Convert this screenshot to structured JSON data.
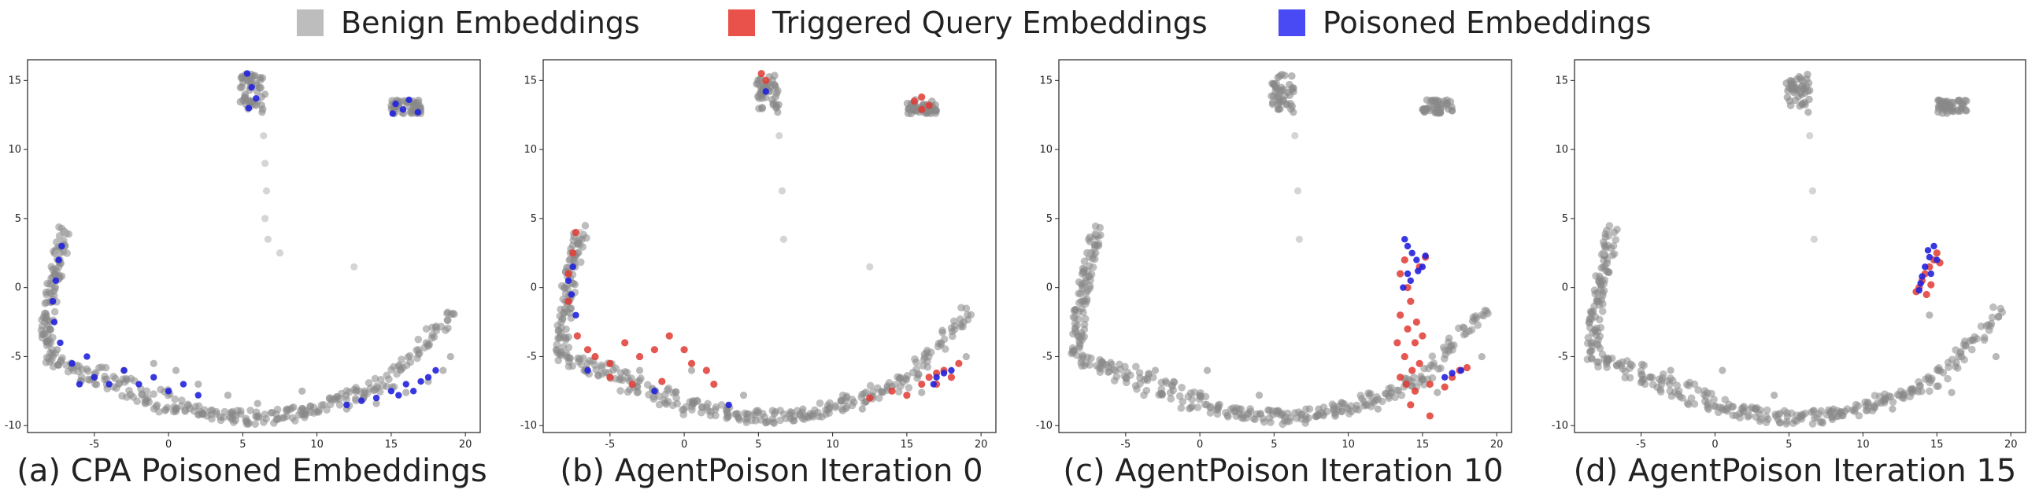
{
  "legend": [
    {
      "label": "Benign Embeddings",
      "color": "#bdbdbd"
    },
    {
      "label": "Triggered Query Embeddings",
      "color": "#e8524b"
    },
    {
      "label": "Poisoned Embeddings",
      "color": "#4a4af5"
    }
  ],
  "colors": {
    "benign": "#888888",
    "benign_light": "#b9b9b9",
    "triggered": "#e03a33",
    "poisoned": "#2222dd"
  },
  "captions": [
    "(a) CPA Poisoned Embeddings",
    "(b) AgentPoison Iteration 0",
    "(c) AgentPoison Iteration 10",
    "(d) AgentPoison Iteration 15"
  ],
  "chart_data": [
    {
      "type": "scatter",
      "title": "(a) CPA Poisoned Embeddings",
      "xlim": [
        -9.5,
        21
      ],
      "ylim": [
        -10.5,
        16.5
      ],
      "xticks": [
        -5,
        0,
        5,
        10,
        15,
        20
      ],
      "yticks": [
        -10,
        -5,
        0,
        5,
        10,
        15
      ],
      "series": [
        {
          "name": "Benign Embeddings",
          "points": [
            [
              -8,
              -1
            ],
            [
              -7.7,
              1
            ],
            [
              -7.5,
              2.5
            ],
            [
              -7.3,
              3.5
            ],
            [
              -7,
              4
            ],
            [
              -8,
              -3
            ],
            [
              -7.5,
              -4.5
            ],
            [
              -6.5,
              -5.5
            ],
            [
              -5,
              -6.5
            ],
            [
              -3,
              -6
            ],
            [
              -1,
              -5.5
            ],
            [
              0.5,
              -6
            ],
            [
              2,
              -7
            ],
            [
              4,
              -7.8
            ],
            [
              6,
              -8.4
            ],
            [
              8,
              -8.8
            ],
            [
              10,
              -9
            ],
            [
              12,
              -8.8
            ],
            [
              14,
              -8.4
            ],
            [
              16,
              -7.6
            ],
            [
              17.5,
              -6.8
            ],
            [
              18.5,
              -6
            ],
            [
              19,
              -5
            ],
            [
              5.5,
              14.5
            ],
            [
              6,
              13.5
            ],
            [
              6.5,
              14
            ],
            [
              5.3,
              15
            ],
            [
              6.3,
              12.7
            ],
            [
              15.5,
              13
            ],
            [
              16.5,
              13.2
            ],
            [
              17,
              12.8
            ],
            [
              6.4,
              11
            ],
            [
              6.5,
              9
            ],
            [
              6.6,
              7
            ],
            [
              6.5,
              5
            ],
            [
              6.7,
              3.5
            ],
            [
              7.5,
              2.5
            ],
            [
              12.5,
              1.5
            ],
            [
              9,
              -7.5
            ]
          ]
        },
        {
          "name": "Poisoned Embeddings",
          "points": [
            [
              -7.8,
              -1
            ],
            [
              -7.6,
              0.5
            ],
            [
              -7.4,
              2
            ],
            [
              -7.2,
              3
            ],
            [
              -7.7,
              -2.5
            ],
            [
              -7.3,
              -4
            ],
            [
              -6.5,
              -5.5
            ],
            [
              -5,
              -6.5
            ],
            [
              -4,
              -7
            ],
            [
              -3,
              -6
            ],
            [
              -2,
              -7
            ],
            [
              -1,
              -6.5
            ],
            [
              0,
              -7.5
            ],
            [
              1,
              -7
            ],
            [
              2,
              -7.8
            ],
            [
              -6,
              -7
            ],
            [
              -5.5,
              -5
            ],
            [
              12,
              -8.5
            ],
            [
              13,
              -8.2
            ],
            [
              14,
              -8
            ],
            [
              15,
              -7.5
            ],
            [
              15.5,
              -7.8
            ],
            [
              16,
              -7
            ],
            [
              16.5,
              -7.5
            ],
            [
              17,
              -6.8
            ],
            [
              17.5,
              -6.5
            ],
            [
              18,
              -6
            ],
            [
              5.3,
              15.5
            ],
            [
              5.6,
              14.5
            ],
            [
              5.9,
              13.7
            ],
            [
              5.4,
              13
            ],
            [
              15.3,
              13.3
            ],
            [
              15.8,
              12.9
            ],
            [
              16.2,
              13.6
            ],
            [
              16.8,
              12.7
            ],
            [
              15.1,
              12.6
            ]
          ]
        }
      ]
    },
    {
      "type": "scatter",
      "title": "(b) AgentPoison Iteration 0",
      "xlim": [
        -9.5,
        21
      ],
      "ylim": [
        -10.5,
        16.5
      ],
      "xticks": [
        -5,
        0,
        5,
        10,
        15,
        20
      ],
      "yticks": [
        -10,
        -5,
        0,
        5,
        10,
        15
      ],
      "series": [
        {
          "name": "Benign Embeddings",
          "points": [
            [
              -8,
              -1
            ],
            [
              -7.5,
              2.5
            ],
            [
              -7,
              4
            ],
            [
              -6.5,
              -5.5
            ],
            [
              -3,
              -6
            ],
            [
              0.5,
              -6
            ],
            [
              4,
              -7.8
            ],
            [
              8,
              -8.8
            ],
            [
              12,
              -8.8
            ],
            [
              16,
              -7.6
            ],
            [
              19,
              -5
            ],
            [
              5.5,
              14.5
            ],
            [
              6.3,
              12.7
            ],
            [
              15.5,
              13
            ],
            [
              17,
              12.8
            ],
            [
              6.4,
              11
            ],
            [
              6.6,
              7
            ],
            [
              6.7,
              3.5
            ],
            [
              12.5,
              1.5
            ]
          ]
        },
        {
          "name": "Triggered Query Embeddings",
          "points": [
            [
              5.2,
              15.5
            ],
            [
              5.5,
              15
            ],
            [
              15.5,
              13.5
            ],
            [
              16,
              13.8
            ],
            [
              16.5,
              13.2
            ],
            [
              16,
              12.9
            ],
            [
              -7.8,
              1
            ],
            [
              -7.5,
              2.5
            ],
            [
              -7.3,
              4
            ],
            [
              -7.8,
              -1
            ],
            [
              -7.2,
              -3.5
            ],
            [
              -6.5,
              -4.5
            ],
            [
              -6,
              -5
            ],
            [
              -5,
              -5.5
            ],
            [
              -4,
              -4
            ],
            [
              -3,
              -5
            ],
            [
              -2,
              -4.5
            ],
            [
              -1,
              -3.5
            ],
            [
              0,
              -4.5
            ],
            [
              -5,
              -6.5
            ],
            [
              -3.5,
              -7
            ],
            [
              -1.5,
              -6.8
            ],
            [
              0.5,
              -5.5
            ],
            [
              1.5,
              -6
            ],
            [
              2,
              -7
            ],
            [
              12.5,
              -8
            ],
            [
              14,
              -7.5
            ],
            [
              15,
              -7.8
            ],
            [
              16,
              -7
            ],
            [
              16.5,
              -6.5
            ],
            [
              17,
              -7
            ],
            [
              17.5,
              -6
            ],
            [
              18,
              -6.5
            ],
            [
              18.5,
              -5.5
            ],
            [
              17,
              -6.2
            ]
          ]
        },
        {
          "name": "Poisoned Embeddings",
          "points": [
            [
              5.5,
              14.2
            ],
            [
              -7.8,
              0.5
            ],
            [
              -7.6,
              -0.5
            ],
            [
              -7.5,
              1.5
            ],
            [
              -7.3,
              -2
            ],
            [
              -6.5,
              -6
            ],
            [
              -2,
              -7.5
            ],
            [
              3,
              -8.5
            ],
            [
              17,
              -6.5
            ],
            [
              17.5,
              -6.2
            ],
            [
              18,
              -6
            ],
            [
              16.8,
              -7
            ]
          ]
        }
      ]
    },
    {
      "type": "scatter",
      "title": "(c) AgentPoison Iteration 10",
      "xlim": [
        -9.5,
        21
      ],
      "ylim": [
        -10.5,
        16.5
      ],
      "xticks": [
        -5,
        0,
        5,
        10,
        15,
        20
      ],
      "yticks": [
        -10,
        -5,
        0,
        5,
        10,
        15
      ],
      "series": [
        {
          "name": "Benign Embeddings",
          "points": [
            [
              -8,
              -1
            ],
            [
              -7.5,
              2.5
            ],
            [
              -7,
              4
            ],
            [
              -6.5,
              -5.5
            ],
            [
              -3,
              -6
            ],
            [
              0.5,
              -6
            ],
            [
              4,
              -7.8
            ],
            [
              8,
              -8.8
            ],
            [
              12,
              -8.8
            ],
            [
              16,
              -7.6
            ],
            [
              19,
              -5
            ],
            [
              5.5,
              14.5
            ],
            [
              6.3,
              12.7
            ],
            [
              15.5,
              13
            ],
            [
              17,
              12.8
            ],
            [
              6.4,
              11
            ],
            [
              6.6,
              7
            ],
            [
              6.7,
              3.5
            ]
          ]
        },
        {
          "name": "Triggered Query Embeddings",
          "points": [
            [
              13.5,
              1
            ],
            [
              13.8,
              2
            ],
            [
              14,
              0
            ],
            [
              14.2,
              -1
            ],
            [
              13.5,
              -2
            ],
            [
              14,
              -3
            ],
            [
              14.5,
              -4
            ],
            [
              13.8,
              -5
            ],
            [
              14.3,
              -6
            ],
            [
              13.5,
              -6.5
            ],
            [
              14.8,
              -5.5
            ],
            [
              15,
              -3.5
            ],
            [
              13.3,
              -4
            ],
            [
              14.6,
              -2.5
            ],
            [
              13.9,
              -7
            ],
            [
              14.5,
              -7.5
            ],
            [
              15.5,
              -7
            ],
            [
              16.5,
              -7.2
            ],
            [
              17,
              -6.5
            ],
            [
              17.5,
              -6
            ],
            [
              18,
              -5.8
            ],
            [
              15.5,
              -9.3
            ],
            [
              14.2,
              -8.5
            ],
            [
              14.8,
              1.5
            ],
            [
              15.2,
              2.2
            ]
          ]
        },
        {
          "name": "Poisoned Embeddings",
          "points": [
            [
              13.8,
              3.5
            ],
            [
              14,
              3
            ],
            [
              14.3,
              2.5
            ],
            [
              14.6,
              2
            ],
            [
              15,
              1.5
            ],
            [
              14,
              1
            ],
            [
              13.7,
              0
            ],
            [
              14.2,
              0.5
            ],
            [
              14.7,
              1.2
            ],
            [
              15.2,
              2.3
            ],
            [
              17,
              -6.2
            ],
            [
              17.6,
              -6
            ],
            [
              16.5,
              -6.5
            ]
          ]
        }
      ]
    },
    {
      "type": "scatter",
      "title": "(d) AgentPoison Iteration 15",
      "xlim": [
        -9.5,
        21
      ],
      "ylim": [
        -10.5,
        16.5
      ],
      "xticks": [
        -5,
        0,
        5,
        10,
        15,
        20
      ],
      "yticks": [
        -10,
        -5,
        0,
        5,
        10,
        15
      ],
      "series": [
        {
          "name": "Benign Embeddings",
          "points": [
            [
              -8,
              -1
            ],
            [
              -7.5,
              2.5
            ],
            [
              -7,
              4
            ],
            [
              -6.5,
              -5.5
            ],
            [
              -3,
              -6
            ],
            [
              0.5,
              -6
            ],
            [
              4,
              -7.8
            ],
            [
              8,
              -8.8
            ],
            [
              12,
              -8.8
            ],
            [
              16,
              -7.6
            ],
            [
              19,
              -5
            ],
            [
              5.5,
              14.5
            ],
            [
              6.3,
              12.7
            ],
            [
              15.5,
              13
            ],
            [
              17,
              12.8
            ],
            [
              6.4,
              11
            ],
            [
              6.6,
              7
            ],
            [
              6.7,
              3.5
            ],
            [
              14.5,
              -2
            ]
          ]
        },
        {
          "name": "Triggered Query Embeddings",
          "points": [
            [
              13.8,
              0
            ],
            [
              14,
              0.5
            ],
            [
              14.2,
              1
            ],
            [
              14.5,
              1.5
            ],
            [
              14.8,
              2
            ],
            [
              15,
              2.5
            ],
            [
              14.3,
              -0.5
            ],
            [
              13.6,
              -0.3
            ],
            [
              15.2,
              1.8
            ],
            [
              14.6,
              0.2
            ]
          ]
        },
        {
          "name": "Poisoned Embeddings",
          "points": [
            [
              14.8,
              3
            ],
            [
              14.5,
              2.2
            ],
            [
              14.2,
              1.5
            ],
            [
              14,
              0.8
            ],
            [
              13.8,
              -0.2
            ],
            [
              14.6,
              1
            ],
            [
              15,
              2
            ],
            [
              14.4,
              2.7
            ],
            [
              13.9,
              0.3
            ]
          ]
        }
      ]
    }
  ]
}
